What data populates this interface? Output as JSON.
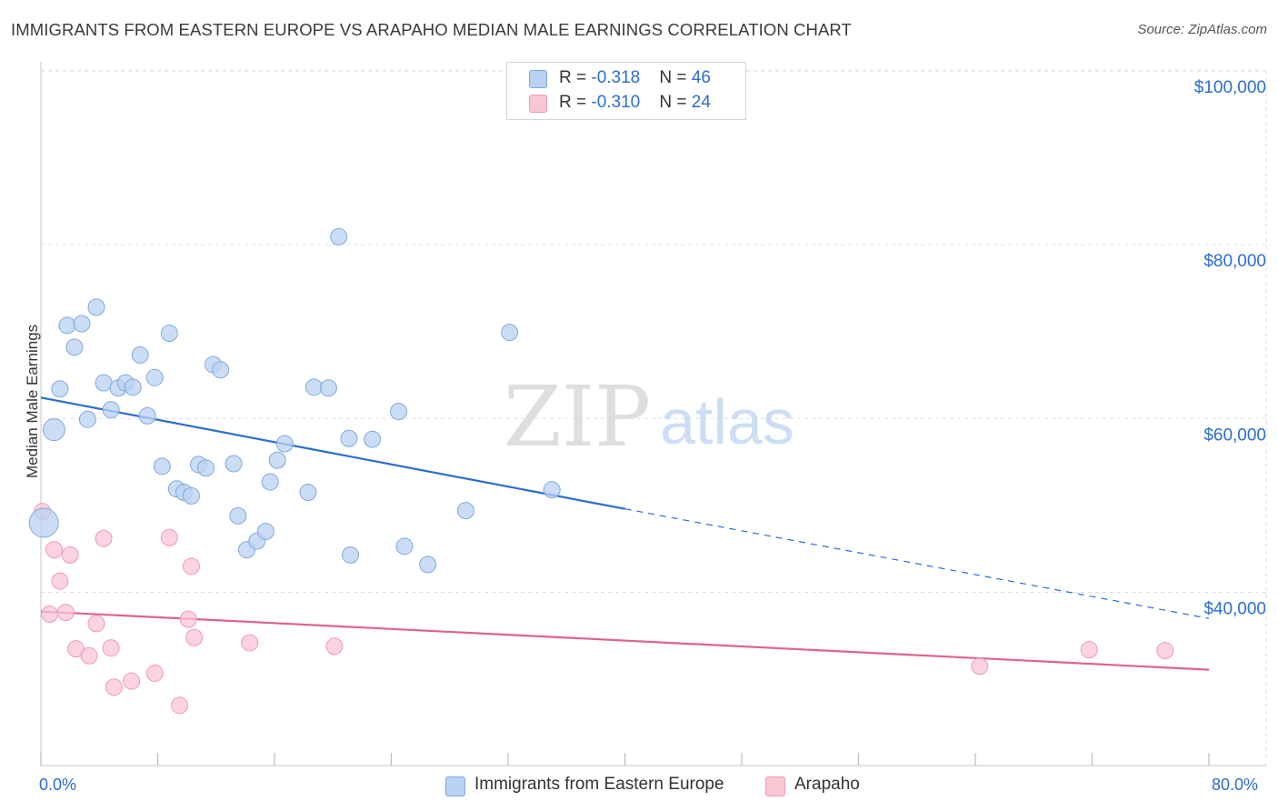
{
  "title": "IMMIGRANTS FROM EASTERN EUROPE VS ARAPAHO MEDIAN MALE EARNINGS CORRELATION CHART",
  "source": "Source: ZipAtlas.com",
  "watermark": {
    "zip": "ZIP",
    "atlas": "atlas"
  },
  "legend_top": {
    "rows": [
      {
        "r_label": "R = ",
        "r_value": "-0.318",
        "n_label": "N = ",
        "n_value": "46"
      },
      {
        "r_label": "R = ",
        "r_value": "-0.310",
        "n_label": "N = ",
        "n_value": "24"
      }
    ]
  },
  "legend_bottom": [
    "Immigrants from Eastern Europe",
    "Arapaho"
  ],
  "colors": {
    "blue_fill": "#b9d2f1",
    "blue_edge": "#7fa9de",
    "blue_line": "#2b6dd1",
    "pink_fill": "#f9c6d4",
    "pink_edge": "#ee9ab2",
    "pink_line": "#e0628c",
    "grid": "#dddddd",
    "tick_text": "#2b6dd1"
  },
  "chart_data": {
    "type": "scatter",
    "title": "IMMIGRANTS FROM EASTERN EUROPE VS ARAPAHO MEDIAN MALE EARNINGS CORRELATION CHART",
    "xlabel": "",
    "ylabel": "Median Male Earnings",
    "xlim": [
      0,
      80
    ],
    "ylim": [
      20000,
      101000
    ],
    "x_tick_labels": [
      "0.0%",
      "80.0%"
    ],
    "y_ticks": [
      40000,
      60000,
      80000,
      100000
    ],
    "y_tick_labels": [
      "$40,000",
      "$60,000",
      "$80,000",
      "$100,000"
    ],
    "grid": true,
    "series": [
      {
        "name": "Immigrants from Eastern Europe",
        "points": [
          [
            0.2,
            48000
          ],
          [
            0.9,
            58700
          ],
          [
            1.3,
            63400
          ],
          [
            1.8,
            70700
          ],
          [
            2.3,
            68200
          ],
          [
            2.8,
            70900
          ],
          [
            3.2,
            59900
          ],
          [
            3.8,
            72800
          ],
          [
            4.3,
            64100
          ],
          [
            4.8,
            61000
          ],
          [
            5.3,
            63500
          ],
          [
            5.8,
            64100
          ],
          [
            6.3,
            63600
          ],
          [
            6.8,
            67300
          ],
          [
            7.3,
            60300
          ],
          [
            7.8,
            64700
          ],
          [
            8.3,
            54500
          ],
          [
            8.8,
            69800
          ],
          [
            9.3,
            51900
          ],
          [
            9.8,
            51500
          ],
          [
            10.3,
            51100
          ],
          [
            10.8,
            54700
          ],
          [
            11.3,
            54300
          ],
          [
            11.8,
            66200
          ],
          [
            12.3,
            65600
          ],
          [
            13.2,
            54800
          ],
          [
            13.5,
            48800
          ],
          [
            14.1,
            44900
          ],
          [
            14.8,
            45900
          ],
          [
            15.4,
            47000
          ],
          [
            15.7,
            52700
          ],
          [
            16.2,
            55200
          ],
          [
            16.7,
            57100
          ],
          [
            18.3,
            51500
          ],
          [
            18.7,
            63600
          ],
          [
            19.7,
            63500
          ],
          [
            20.4,
            80900
          ],
          [
            21.1,
            57700
          ],
          [
            21.2,
            44300
          ],
          [
            22.7,
            57600
          ],
          [
            24.5,
            60800
          ],
          [
            24.9,
            45300
          ],
          [
            26.5,
            43200
          ],
          [
            29.1,
            49400
          ],
          [
            32.1,
            69900
          ],
          [
            35.0,
            51800
          ]
        ]
      },
      {
        "name": "Arapaho",
        "points": [
          [
            0.1,
            49300
          ],
          [
            0.6,
            37500
          ],
          [
            0.9,
            44900
          ],
          [
            1.3,
            41300
          ],
          [
            1.7,
            37700
          ],
          [
            2.0,
            44300
          ],
          [
            2.4,
            33500
          ],
          [
            3.3,
            32700
          ],
          [
            3.8,
            36400
          ],
          [
            4.3,
            46200
          ],
          [
            4.8,
            33600
          ],
          [
            5.0,
            29100
          ],
          [
            6.2,
            29800
          ],
          [
            7.8,
            30700
          ],
          [
            8.8,
            46300
          ],
          [
            9.5,
            27000
          ],
          [
            10.1,
            36900
          ],
          [
            10.3,
            43000
          ],
          [
            10.5,
            34800
          ],
          [
            14.3,
            34200
          ],
          [
            20.1,
            33800
          ],
          [
            64.3,
            31500
          ],
          [
            71.8,
            33400
          ],
          [
            77.0,
            33300
          ]
        ]
      }
    ],
    "trendlines": [
      {
        "series": "Immigrants from Eastern Europe",
        "x": [
          0,
          40
        ],
        "y": [
          62400,
          49600
        ],
        "dashed_to": [
          80,
          37000
        ]
      },
      {
        "series": "Arapaho",
        "x": [
          0,
          80
        ],
        "y": [
          37800,
          31100
        ]
      }
    ]
  }
}
